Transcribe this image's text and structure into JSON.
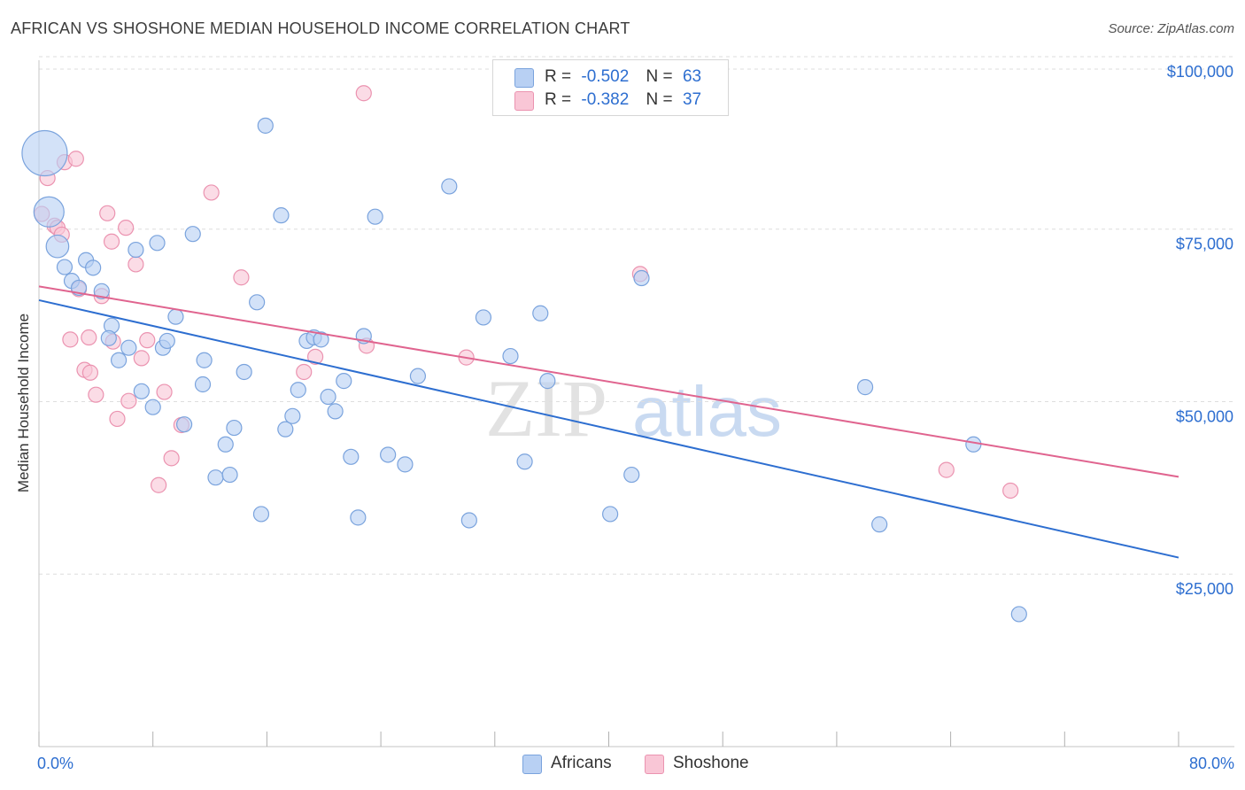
{
  "title": "AFRICAN VS SHOSHONE MEDIAN HOUSEHOLD INCOME CORRELATION CHART",
  "source": "Source: ZipAtlas.com",
  "watermark": {
    "zip": "ZIP",
    "atlas": "atlas"
  },
  "legend_top": {
    "africans": {
      "r_label": "R =",
      "r_value": "-0.502",
      "n_label": "N =",
      "n_value": "63"
    },
    "shoshone": {
      "r_label": "R =",
      "r_value": "-0.382",
      "n_label": "N =",
      "n_value": "37"
    }
  },
  "legend_bottom": {
    "africans": "Africans",
    "shoshone": "Shoshone"
  },
  "colors": {
    "africans_fill": "#b8d0f3",
    "africans_stroke": "#7aa3dd",
    "africans_line": "#2d6ed0",
    "shoshone_fill": "#f9c6d6",
    "shoshone_stroke": "#eb93b0",
    "shoshone_line": "#e0648f",
    "tick_text": "#2d6ed0",
    "grid": "#dedede"
  },
  "chart_data": {
    "type": "scatter",
    "xlabel": "",
    "ylabel": "Median Household Income",
    "xlim": [
      0,
      80
    ],
    "ylim": [
      0,
      105000
    ],
    "x_tick_labels": [
      {
        "value": 0,
        "label": "0.0%"
      },
      {
        "value": 80,
        "label": "80.0%"
      }
    ],
    "y_ticks": [
      {
        "value": 25000,
        "label": "$25,000"
      },
      {
        "value": 50000,
        "label": "$50,000"
      },
      {
        "value": 75000,
        "label": "$75,000"
      },
      {
        "value": 100000,
        "label": "$100,000"
      }
    ],
    "series": [
      {
        "name": "Africans",
        "trend": {
          "x": [
            0,
            80
          ],
          "y": [
            64700,
            27400
          ]
        },
        "points": [
          [
            0.4,
            86000,
            3
          ],
          [
            0.7,
            77500,
            2
          ],
          [
            1.3,
            72500,
            1.5
          ],
          [
            1.8,
            69500,
            1
          ],
          [
            2.3,
            67500,
            1
          ],
          [
            2.8,
            66500,
            1
          ],
          [
            3.3,
            70500,
            1
          ],
          [
            3.8,
            69400,
            1
          ],
          [
            4.4,
            66000,
            1
          ],
          [
            5.1,
            61000,
            1
          ],
          [
            4.9,
            59200,
            1
          ],
          [
            5.6,
            56000,
            1
          ],
          [
            6.3,
            57800,
            1
          ],
          [
            6.8,
            72000,
            1
          ],
          [
            7.2,
            51500,
            1
          ],
          [
            8.0,
            49200,
            1
          ],
          [
            8.3,
            73000,
            1
          ],
          [
            8.7,
            57800,
            1
          ],
          [
            9.0,
            58800,
            1
          ],
          [
            9.6,
            62300,
            1
          ],
          [
            10.2,
            46700,
            1
          ],
          [
            10.8,
            74300,
            1
          ],
          [
            11.5,
            52500,
            1
          ],
          [
            11.6,
            56000,
            1
          ],
          [
            12.4,
            39000,
            1
          ],
          [
            13.1,
            43800,
            1
          ],
          [
            13.4,
            39400,
            1
          ],
          [
            13.7,
            46200,
            1
          ],
          [
            14.4,
            54300,
            1
          ],
          [
            15.3,
            64400,
            1
          ],
          [
            15.6,
            33700,
            1
          ],
          [
            15.9,
            90000,
            1
          ],
          [
            17.0,
            77000,
            1
          ],
          [
            17.3,
            46000,
            1
          ],
          [
            17.8,
            47900,
            1
          ],
          [
            18.2,
            51700,
            1
          ],
          [
            18.8,
            58800,
            1
          ],
          [
            19.3,
            59300,
            1
          ],
          [
            19.8,
            59000,
            1
          ],
          [
            20.3,
            50700,
            1
          ],
          [
            20.8,
            48600,
            1
          ],
          [
            21.4,
            53000,
            1
          ],
          [
            21.9,
            42000,
            1
          ],
          [
            22.4,
            33200,
            1
          ],
          [
            22.8,
            59500,
            1
          ],
          [
            23.6,
            76800,
            1
          ],
          [
            24.5,
            42300,
            1
          ],
          [
            25.7,
            40900,
            1
          ],
          [
            26.6,
            53700,
            1
          ],
          [
            28.8,
            81200,
            1
          ],
          [
            30.2,
            32800,
            1
          ],
          [
            31.2,
            62200,
            1
          ],
          [
            33.1,
            56600,
            1
          ],
          [
            34.1,
            41300,
            1
          ],
          [
            35.2,
            62800,
            1
          ],
          [
            35.7,
            53000,
            1
          ],
          [
            40.1,
            33700,
            1
          ],
          [
            41.6,
            39400,
            1
          ],
          [
            42.3,
            67900,
            1
          ],
          [
            58.0,
            52100,
            1
          ],
          [
            59.0,
            32200,
            1
          ],
          [
            65.6,
            43800,
            1
          ],
          [
            68.8,
            19200,
            1
          ]
        ]
      },
      {
        "name": "Shoshone",
        "trend": {
          "x": [
            0,
            80
          ],
          "y": [
            66700,
            39100
          ]
        },
        "points": [
          [
            0.2,
            77200,
            1
          ],
          [
            0.6,
            82400,
            1
          ],
          [
            1.1,
            75500,
            1
          ],
          [
            1.3,
            75200,
            1
          ],
          [
            1.6,
            74200,
            1
          ],
          [
            1.8,
            84700,
            1
          ],
          [
            2.2,
            59000,
            1
          ],
          [
            2.6,
            85200,
            1
          ],
          [
            2.8,
            66300,
            1
          ],
          [
            3.2,
            54600,
            1
          ],
          [
            3.5,
            59300,
            1
          ],
          [
            3.6,
            54200,
            1
          ],
          [
            4.0,
            51000,
            1
          ],
          [
            4.4,
            65300,
            1
          ],
          [
            4.8,
            77300,
            1
          ],
          [
            5.1,
            73200,
            1
          ],
          [
            5.2,
            58700,
            1
          ],
          [
            5.5,
            47500,
            1
          ],
          [
            6.1,
            75200,
            1
          ],
          [
            6.3,
            50100,
            1
          ],
          [
            6.8,
            69900,
            1
          ],
          [
            7.2,
            56300,
            1
          ],
          [
            7.6,
            58900,
            1
          ],
          [
            8.4,
            37900,
            1
          ],
          [
            8.8,
            51400,
            1
          ],
          [
            9.3,
            41800,
            1
          ],
          [
            10.0,
            46600,
            1
          ],
          [
            12.1,
            80300,
            1
          ],
          [
            14.2,
            68000,
            1
          ],
          [
            18.6,
            54300,
            1
          ],
          [
            19.4,
            56500,
            1
          ],
          [
            22.8,
            94700,
            1
          ],
          [
            23.0,
            58100,
            1
          ],
          [
            30.0,
            56400,
            1
          ],
          [
            42.2,
            68500,
            1
          ],
          [
            63.7,
            40100,
            1
          ],
          [
            68.2,
            37100,
            1
          ]
        ]
      }
    ]
  }
}
